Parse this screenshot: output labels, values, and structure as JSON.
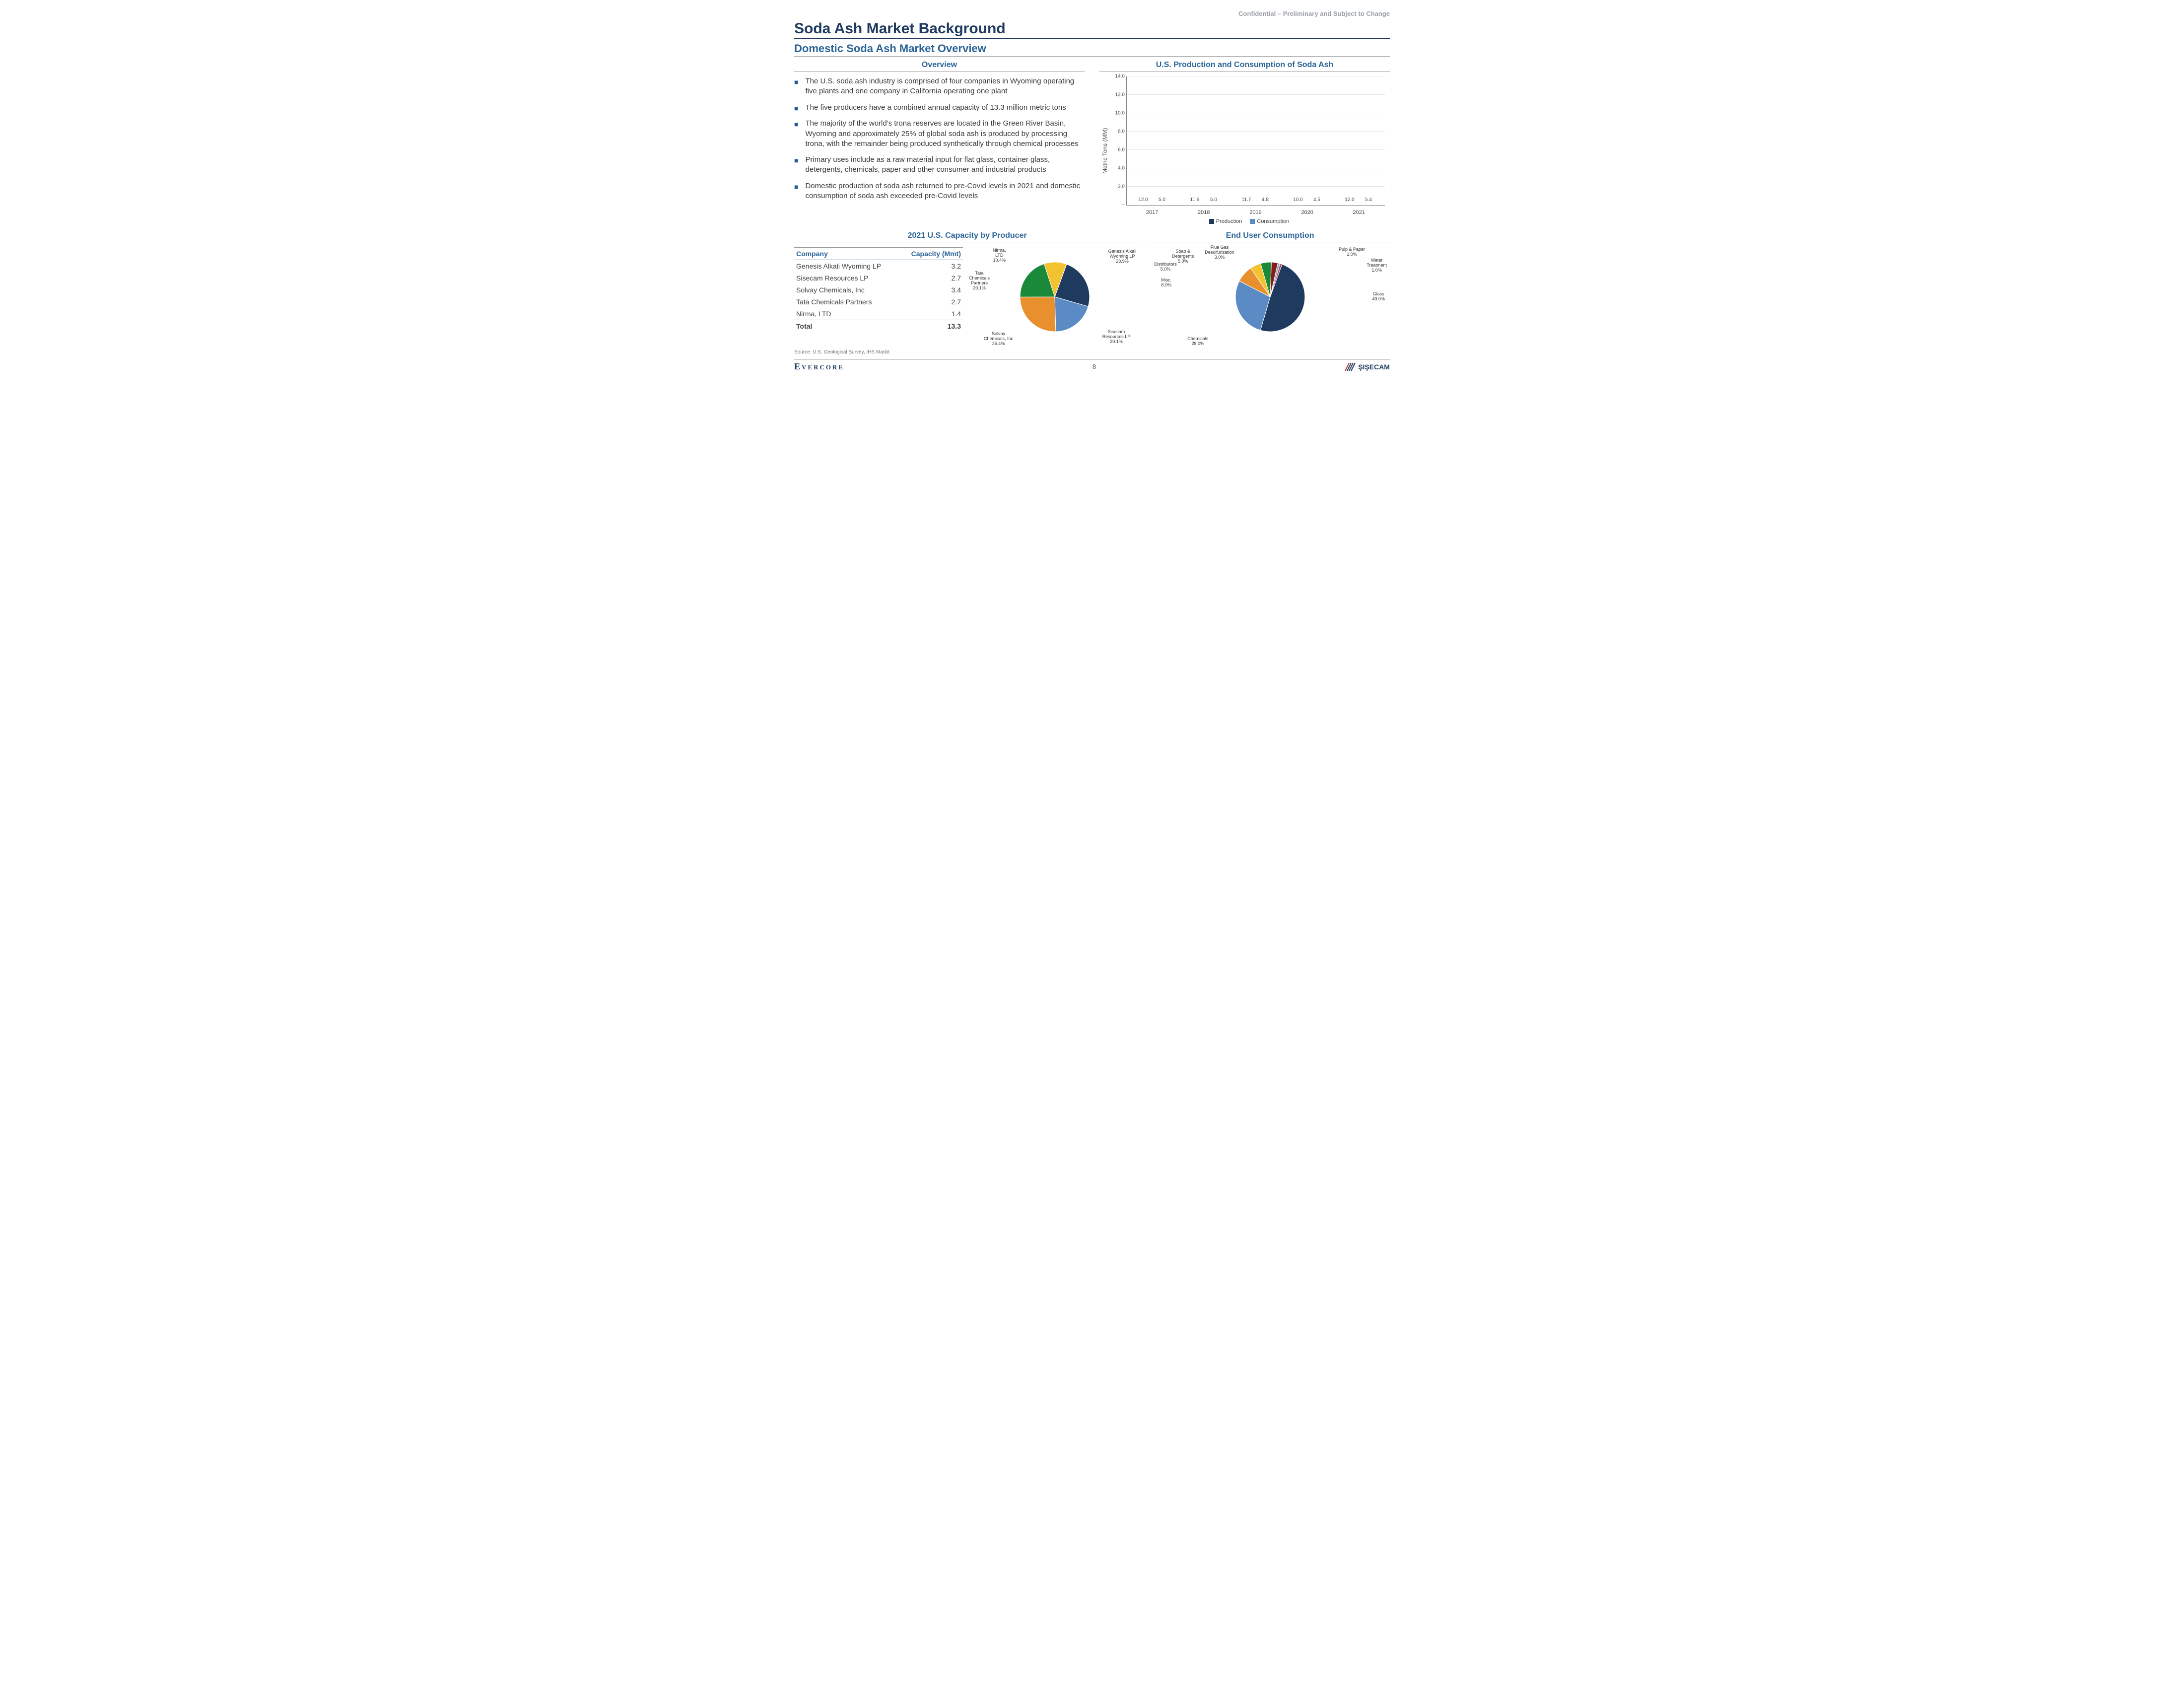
{
  "header": {
    "confidential": "Confidential – Preliminary and Subject to Change",
    "title": "Soda Ash Market Background",
    "subtitle": "Domestic Soda Ash Market Overview"
  },
  "overview": {
    "header": "Overview",
    "bullets": [
      "The U.S. soda ash industry is comprised of four companies in Wyoming operating five plants and one company in California operating one plant",
      "The five producers have a combined annual capacity of 13.3 million metric tons",
      "The majority of the world's trona reserves are located in the Green River Basin, Wyoming and approximately 25% of global soda ash is produced by processing trona, with the remainder being produced synthetically through chemical processes",
      "Primary uses include as a raw material input for flat glass, container glass, detergents, chemicals, paper and other consumer and industrial products",
      "Domestic production of soda ash returned to pre-Covid levels in 2021 and domestic consumption of soda ash exceeded pre-Covid levels"
    ]
  },
  "bar_chart": {
    "header": "U.S. Production and Consumption of Soda Ash",
    "y_label": "Metric Tons (MM)",
    "ylim": [
      0,
      14
    ],
    "ytick_step": 2,
    "ytick_labels": [
      "--",
      "2.0",
      "4.0",
      "6.0",
      "8.0",
      "10.0",
      "12.0",
      "14.0"
    ],
    "categories": [
      "2017",
      "2018",
      "2019",
      "2020",
      "2021"
    ],
    "series": [
      {
        "name": "Production",
        "color": "#1f3a5f",
        "values": [
          12.0,
          11.9,
          11.7,
          10.0,
          12.0
        ]
      },
      {
        "name": "Consumption",
        "color": "#5b8bc5",
        "values": [
          5.0,
          5.0,
          4.8,
          4.5,
          5.4
        ]
      }
    ]
  },
  "capacity": {
    "header": "2021 U.S. Capacity by Producer",
    "columns": [
      "Company",
      "Capacity (Mmt)"
    ],
    "rows": [
      [
        "Genesis Alkali Wyoming LP",
        "3.2"
      ],
      [
        "Sisecam Resources LP",
        "2.7"
      ],
      [
        "Solvay Chemicals, Inc",
        "3.4"
      ],
      [
        "Tata Chemicals Partners",
        "2.7"
      ],
      [
        "Nirma, LTD",
        "1.4"
      ]
    ],
    "total": [
      "Total",
      "13.3"
    ],
    "pie": {
      "slices": [
        {
          "label": "Genesis Alkali Wyoming LP",
          "pct": 23.9,
          "color": "#1f3a5f"
        },
        {
          "label": "Sisecam Resources LP",
          "pct": 20.1,
          "color": "#5b8bc5"
        },
        {
          "label": "Solvay Chemicals, Inc",
          "pct": 25.4,
          "color": "#e8902e"
        },
        {
          "label": "Tata Chemicals Partners",
          "pct": 20.1,
          "color": "#1a8a3a"
        },
        {
          "label": "Nirma, LTD",
          "pct": 10.4,
          "color": "#f2c230"
        }
      ],
      "label_text": {
        "genesis": "Genesis Alkali\nWyoming LP\n23.9%",
        "sisecam": "Sisecam\nResources LP\n20.1%",
        "solvay": "Solvay\nChemicals, Inc\n25.4%",
        "tata": "Tata\nChemicals\nPartners\n20.1%",
        "nirma": "Nirma,\nLTD\n10.4%"
      }
    }
  },
  "end_user": {
    "header": "End User Consumption",
    "slices": [
      {
        "label": "Glass",
        "pct": 49.0,
        "color": "#1f3a5f"
      },
      {
        "label": "Chemicals",
        "pct": 28.0,
        "color": "#5b8bc5"
      },
      {
        "label": "Misc.",
        "pct": 8.0,
        "color": "#e8902e"
      },
      {
        "label": "Distributors",
        "pct": 5.0,
        "color": "#f2c230"
      },
      {
        "label": "Soap & Detergents",
        "pct": 5.0,
        "color": "#1a8a3a"
      },
      {
        "label": "Flue Gas Desulfurization",
        "pct": 3.0,
        "color": "#8a1a1a"
      },
      {
        "label": "Pulp & Paper",
        "pct": 1.0,
        "color": "#7aa8d8"
      },
      {
        "label": "Water Treatment",
        "pct": 1.0,
        "color": "#b54a4a"
      }
    ],
    "label_text": {
      "glass": "Glass\n49.0%",
      "chemicals": "Chemicals\n28.0%",
      "misc": "Misc.\n8.0%",
      "distributors": "Distributors\n5.0%",
      "soap": "Soap &\nDetergents\n5.0%",
      "flue": "Flue Gas\nDesulfurization\n3.0%",
      "pulp": "Pulp & Paper\n1.0%",
      "water": "Water\nTreatment\n1.0%"
    }
  },
  "source": "Source: U.S. Geological Survey, IHS Markit",
  "footer": {
    "left": "Evercore",
    "page": "8",
    "right": "ŞIŞECAM"
  }
}
